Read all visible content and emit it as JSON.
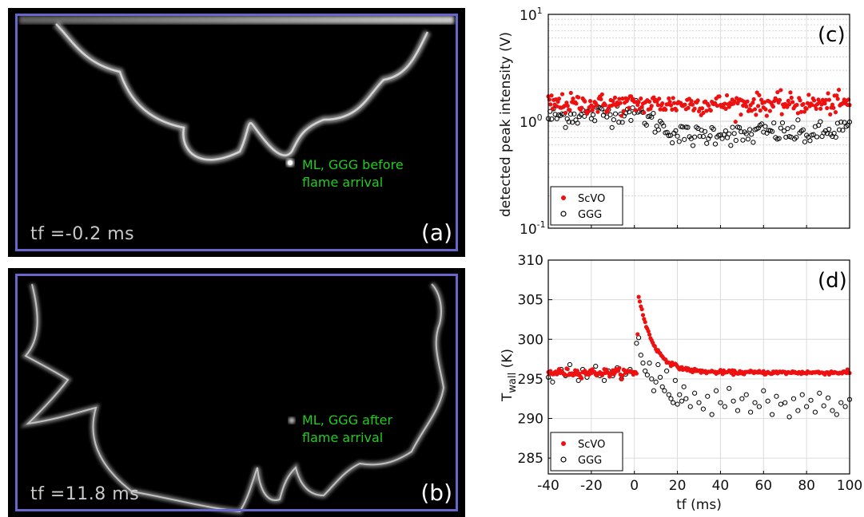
{
  "panels": {
    "a": {
      "letter": "(a)",
      "tf_label": "tf =-0.2 ms",
      "annotation_line1": "ML, GGG before",
      "annotation_line2": "flame arrival"
    },
    "b": {
      "letter": "(b)",
      "tf_label": "tf =11.8 ms",
      "annotation_line1": "ML, GGG after",
      "annotation_line2": "flame arrival"
    }
  },
  "colors": {
    "frame": "#6666cc",
    "annotation": "#22cc22",
    "scvo": "#ee1111",
    "ggg": "#000000"
  },
  "chart_data": [
    {
      "type": "scatter",
      "letter": "(c)",
      "ylabel": "detected peak intensity (V)",
      "yscale": "log",
      "ylim": [
        0.1,
        10
      ],
      "xlim": [
        -40,
        100
      ],
      "y_tick_labels": [
        {
          "base": "10",
          "exp": "-1",
          "value": 0.1
        },
        {
          "base": "10",
          "exp": "0",
          "value": 1
        },
        {
          "base": "10",
          "exp": "1",
          "value": 10
        }
      ],
      "grid": true,
      "legend": "bottom-left",
      "series": [
        {
          "name": "ScVO",
          "marker": "filled-circle",
          "mean": 1.45,
          "x_start": -40,
          "x_end": 100,
          "x_step": 0.5
        },
        {
          "name": "GGG",
          "marker": "open-circle",
          "trend": [
            [
              -40,
              1.1
            ],
            [
              -20,
              1.15
            ],
            [
              0,
              1.25
            ],
            [
              10,
              0.95
            ],
            [
              20,
              0.75
            ],
            [
              30,
              0.72
            ],
            [
              40,
              0.8
            ],
            [
              50,
              0.72
            ],
            [
              60,
              0.8
            ],
            [
              70,
              0.78
            ],
            [
              80,
              0.75
            ],
            [
              90,
              0.78
            ],
            [
              100,
              0.9
            ]
          ],
          "x_start": -40,
          "x_end": 100,
          "x_step": 0.8
        }
      ]
    },
    {
      "type": "scatter",
      "letter": "(d)",
      "ylabel": "T",
      "ylabel_sub": "wall",
      "ylabel_unit": "(K)",
      "xlabel": "tf (ms)",
      "xlim": [
        -40,
        100
      ],
      "ylim": [
        283,
        310
      ],
      "x_ticks": [
        -40,
        -20,
        0,
        20,
        40,
        60,
        80,
        100
      ],
      "y_ticks": [
        285,
        290,
        295,
        300,
        305,
        310
      ],
      "grid": true,
      "legend": "bottom-left",
      "series": [
        {
          "name": "ScVO",
          "marker": "filled-circle",
          "baseline": 295.8,
          "peak": 305.5,
          "peak_x": 2,
          "decay_ms": 7,
          "x_start": -40,
          "x_end": 100,
          "x_step": 0.5
        },
        {
          "name": "GGG",
          "marker": "open-circle",
          "points": [
            [
              -40,
              295.2
            ],
            [
              -38,
              294.6
            ],
            [
              -36,
              295.8
            ],
            [
              -34,
              296.2
            ],
            [
              -32,
              295.4
            ],
            [
              -30,
              296.8
            ],
            [
              -28,
              295.6
            ],
            [
              -26,
              294.8
            ],
            [
              -24,
              296.2
            ],
            [
              -22,
              295.2
            ],
            [
              -20,
              295.8
            ],
            [
              -18,
              296.6
            ],
            [
              -16,
              295.4
            ],
            [
              -14,
              294.8
            ],
            [
              -12,
              296
            ],
            [
              -10,
              295.4
            ],
            [
              -8,
              296.4
            ],
            [
              -6,
              295
            ],
            [
              -4,
              295.6
            ],
            [
              -2,
              296.2
            ],
            [
              0,
              295.8
            ],
            [
              1,
              299.5
            ],
            [
              2,
              300.2
            ],
            [
              3,
              298
            ],
            [
              4,
              297
            ],
            [
              5,
              296
            ],
            [
              6,
              295.5
            ],
            [
              7,
              297
            ],
            [
              8,
              295
            ],
            [
              9,
              293.5
            ],
            [
              10,
              294.6
            ],
            [
              11,
              296.8
            ],
            [
              12,
              295.2
            ],
            [
              13,
              294
            ],
            [
              14,
              293.5
            ],
            [
              15,
              296
            ],
            [
              16,
              293
            ],
            [
              17,
              292.5
            ],
            [
              18,
              292
            ],
            [
              19,
              294.8
            ],
            [
              20,
              291.8
            ],
            [
              21,
              293
            ],
            [
              22,
              292.2
            ],
            [
              23,
              294
            ],
            [
              24,
              292.5
            ],
            [
              26,
              291.5
            ],
            [
              28,
              293.2
            ],
            [
              30,
              292
            ],
            [
              32,
              291.2
            ],
            [
              34,
              292.8
            ],
            [
              36,
              290.5
            ],
            [
              38,
              293.5
            ],
            [
              40,
              292
            ],
            [
              42,
              291.5
            ],
            [
              44,
              293.8
            ],
            [
              46,
              292.2
            ],
            [
              48,
              291
            ],
            [
              50,
              292.5
            ],
            [
              52,
              293
            ],
            [
              54,
              290.8
            ],
            [
              56,
              292
            ],
            [
              58,
              291.5
            ],
            [
              60,
              293.5
            ],
            [
              62,
              292.2
            ],
            [
              64,
              290.5
            ],
            [
              66,
              292.8
            ],
            [
              68,
              291.8
            ],
            [
              70,
              292
            ],
            [
              72,
              290.2
            ],
            [
              74,
              292.5
            ],
            [
              76,
              291
            ],
            [
              78,
              293
            ],
            [
              80,
              291.5
            ],
            [
              82,
              292.3
            ],
            [
              84,
              290.8
            ],
            [
              86,
              293.2
            ],
            [
              88,
              291.6
            ],
            [
              90,
              292.6
            ],
            [
              92,
              291
            ],
            [
              94,
              290.5
            ],
            [
              96,
              292
            ],
            [
              98,
              291.5
            ],
            [
              100,
              292.4
            ]
          ]
        }
      ]
    }
  ]
}
